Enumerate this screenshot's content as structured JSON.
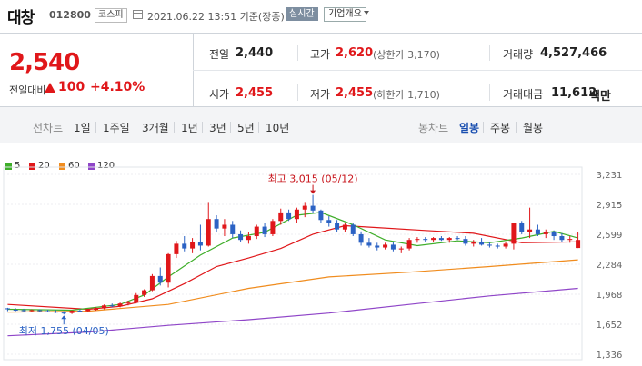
{
  "header": {
    "name": "대창",
    "code": "012800",
    "market": "코스피",
    "datetime": "2021.06.22 13:51 기준(장중)",
    "realtime": "실시간",
    "overview": "기업개요"
  },
  "quote": {
    "price": "2,540",
    "change_label": "전일대비",
    "change": "100",
    "change_pct": "+4.10%",
    "prev_label": "전일",
    "prev": "2,440",
    "high_label": "고가",
    "high": "2,620",
    "upper_limit": "(상한가 3,170)",
    "volume_label": "거래량",
    "volume": "4,527,466",
    "open_label": "시가",
    "open": "2,455",
    "low_label": "저가",
    "low": "2,455",
    "lower_limit": "(하한가 1,710)",
    "amount_label": "거래대금",
    "amount": "11,612",
    "amount_unit": "백만"
  },
  "periods": {
    "line_label": "선차트",
    "line": [
      "1일",
      "1주일",
      "3개월",
      "1년",
      "3년",
      "5년",
      "10년"
    ],
    "candle_label": "봉차트",
    "candle": [
      "일봉",
      "주봉",
      "월봉"
    ],
    "candle_active": "일봉"
  },
  "legend": [
    {
      "label": "5",
      "color": "#3fae2a"
    },
    {
      "label": "20",
      "color": "#e0171a"
    },
    {
      "label": "60",
      "color": "#f08c1e"
    },
    {
      "label": "120",
      "color": "#8f45c8"
    }
  ],
  "chart_data": {
    "type": "candlestick",
    "y_ticks": [
      "3,231",
      "2,915",
      "2,599",
      "2,284",
      "1,968",
      "1,652",
      "1,336"
    ],
    "ylim": [
      1336,
      3231
    ],
    "annotations": {
      "high": "최고 3,015 (05/12)",
      "low": "최저 1,755 (04/05)"
    },
    "candles": [
      [
        1820,
        1825,
        1790,
        1810
      ],
      [
        1805,
        1820,
        1790,
        1800
      ],
      [
        1800,
        1815,
        1785,
        1795
      ],
      [
        1795,
        1810,
        1780,
        1800
      ],
      [
        1800,
        1810,
        1785,
        1790
      ],
      [
        1790,
        1805,
        1780,
        1785
      ],
      [
        1785,
        1800,
        1770,
        1775
      ],
      [
        1775,
        1790,
        1755,
        1770
      ],
      [
        1770,
        1800,
        1760,
        1795
      ],
      [
        1795,
        1810,
        1780,
        1790
      ],
      [
        1790,
        1815,
        1785,
        1805
      ],
      [
        1805,
        1830,
        1795,
        1820
      ],
      [
        1820,
        1860,
        1810,
        1850
      ],
      [
        1850,
        1870,
        1830,
        1840
      ],
      [
        1840,
        1880,
        1830,
        1870
      ],
      [
        1870,
        1900,
        1850,
        1880
      ],
      [
        1880,
        1980,
        1870,
        1960
      ],
      [
        1960,
        2020,
        1940,
        2010
      ],
      [
        2010,
        2180,
        2000,
        2160
      ],
      [
        2160,
        2250,
        2060,
        2090
      ],
      [
        2090,
        2400,
        2040,
        2390
      ],
      [
        2390,
        2530,
        2350,
        2500
      ],
      [
        2500,
        2580,
        2420,
        2450
      ],
      [
        2450,
        2560,
        2400,
        2520
      ],
      [
        2520,
        2700,
        2430,
        2480
      ],
      [
        2480,
        2940,
        2470,
        2760
      ],
      [
        2760,
        2800,
        2620,
        2660
      ],
      [
        2660,
        2760,
        2580,
        2700
      ],
      [
        2700,
        2740,
        2560,
        2600
      ],
      [
        2600,
        2640,
        2520,
        2540
      ],
      [
        2540,
        2620,
        2500,
        2580
      ],
      [
        2580,
        2700,
        2550,
        2680
      ],
      [
        2680,
        2720,
        2570,
        2600
      ],
      [
        2600,
        2760,
        2580,
        2740
      ],
      [
        2740,
        2870,
        2700,
        2830
      ],
      [
        2830,
        2860,
        2740,
        2760
      ],
      [
        2760,
        2880,
        2720,
        2860
      ],
      [
        2860,
        2940,
        2780,
        2900
      ],
      [
        2900,
        3015,
        2820,
        2850
      ],
      [
        2850,
        2860,
        2720,
        2750
      ],
      [
        2750,
        2790,
        2680,
        2720
      ],
      [
        2720,
        2750,
        2620,
        2650
      ],
      [
        2650,
        2720,
        2620,
        2700
      ],
      [
        2700,
        2720,
        2580,
        2600
      ],
      [
        2600,
        2630,
        2480,
        2510
      ],
      [
        2510,
        2560,
        2460,
        2480
      ],
      [
        2480,
        2510,
        2430,
        2460
      ],
      [
        2460,
        2510,
        2440,
        2490
      ],
      [
        2490,
        2520,
        2420,
        2440
      ],
      [
        2440,
        2470,
        2400,
        2450
      ],
      [
        2450,
        2560,
        2430,
        2540
      ],
      [
        2540,
        2570,
        2510,
        2550
      ],
      [
        2550,
        2570,
        2520,
        2540
      ],
      [
        2540,
        2570,
        2520,
        2560
      ],
      [
        2560,
        2580,
        2530,
        2540
      ],
      [
        2540,
        2570,
        2510,
        2560
      ],
      [
        2560,
        2580,
        2540,
        2550
      ],
      [
        2550,
        2580,
        2480,
        2500
      ],
      [
        2500,
        2540,
        2470,
        2520
      ],
      [
        2520,
        2560,
        2480,
        2490
      ],
      [
        2490,
        2520,
        2460,
        2480
      ],
      [
        2480,
        2500,
        2450,
        2470
      ],
      [
        2470,
        2520,
        2450,
        2500
      ],
      [
        2500,
        2720,
        2440,
        2720
      ],
      [
        2720,
        2740,
        2600,
        2620
      ],
      [
        2620,
        2880,
        2560,
        2650
      ],
      [
        2650,
        2700,
        2580,
        2600
      ],
      [
        2600,
        2650,
        2560,
        2620
      ],
      [
        2620,
        2640,
        2540,
        2580
      ],
      [
        2580,
        2610,
        2520,
        2540
      ],
      [
        2540,
        2580,
        2510,
        2550
      ],
      [
        2455,
        2620,
        2455,
        2540
      ]
    ],
    "ma": {
      "5": [
        [
          0,
          1810
        ],
        [
          8,
          1800
        ],
        [
          14,
          1860
        ],
        [
          17,
          1960
        ],
        [
          20,
          2150
        ],
        [
          24,
          2380
        ],
        [
          28,
          2560
        ],
        [
          32,
          2620
        ],
        [
          36,
          2800
        ],
        [
          39,
          2830
        ],
        [
          43,
          2700
        ],
        [
          47,
          2540
        ],
        [
          51,
          2480
        ],
        [
          56,
          2530
        ],
        [
          60,
          2510
        ],
        [
          64,
          2560
        ],
        [
          68,
          2630
        ],
        [
          71,
          2560
        ]
      ],
      "20": [
        [
          0,
          1860
        ],
        [
          10,
          1810
        ],
        [
          14,
          1840
        ],
        [
          18,
          1920
        ],
        [
          22,
          2080
        ],
        [
          26,
          2260
        ],
        [
          30,
          2350
        ],
        [
          34,
          2450
        ],
        [
          38,
          2600
        ],
        [
          42,
          2690
        ],
        [
          46,
          2670
        ],
        [
          52,
          2640
        ],
        [
          58,
          2610
        ],
        [
          64,
          2510
        ],
        [
          71,
          2520
        ]
      ],
      "60": [
        [
          0,
          1780
        ],
        [
          10,
          1790
        ],
        [
          20,
          1860
        ],
        [
          30,
          2030
        ],
        [
          40,
          2150
        ],
        [
          50,
          2200
        ],
        [
          60,
          2260
        ],
        [
          71,
          2330
        ]
      ],
      "120": [
        [
          0,
          1530
        ],
        [
          10,
          1570
        ],
        [
          20,
          1640
        ],
        [
          30,
          1700
        ],
        [
          40,
          1770
        ],
        [
          50,
          1860
        ],
        [
          60,
          1950
        ],
        [
          71,
          2030
        ]
      ]
    }
  }
}
